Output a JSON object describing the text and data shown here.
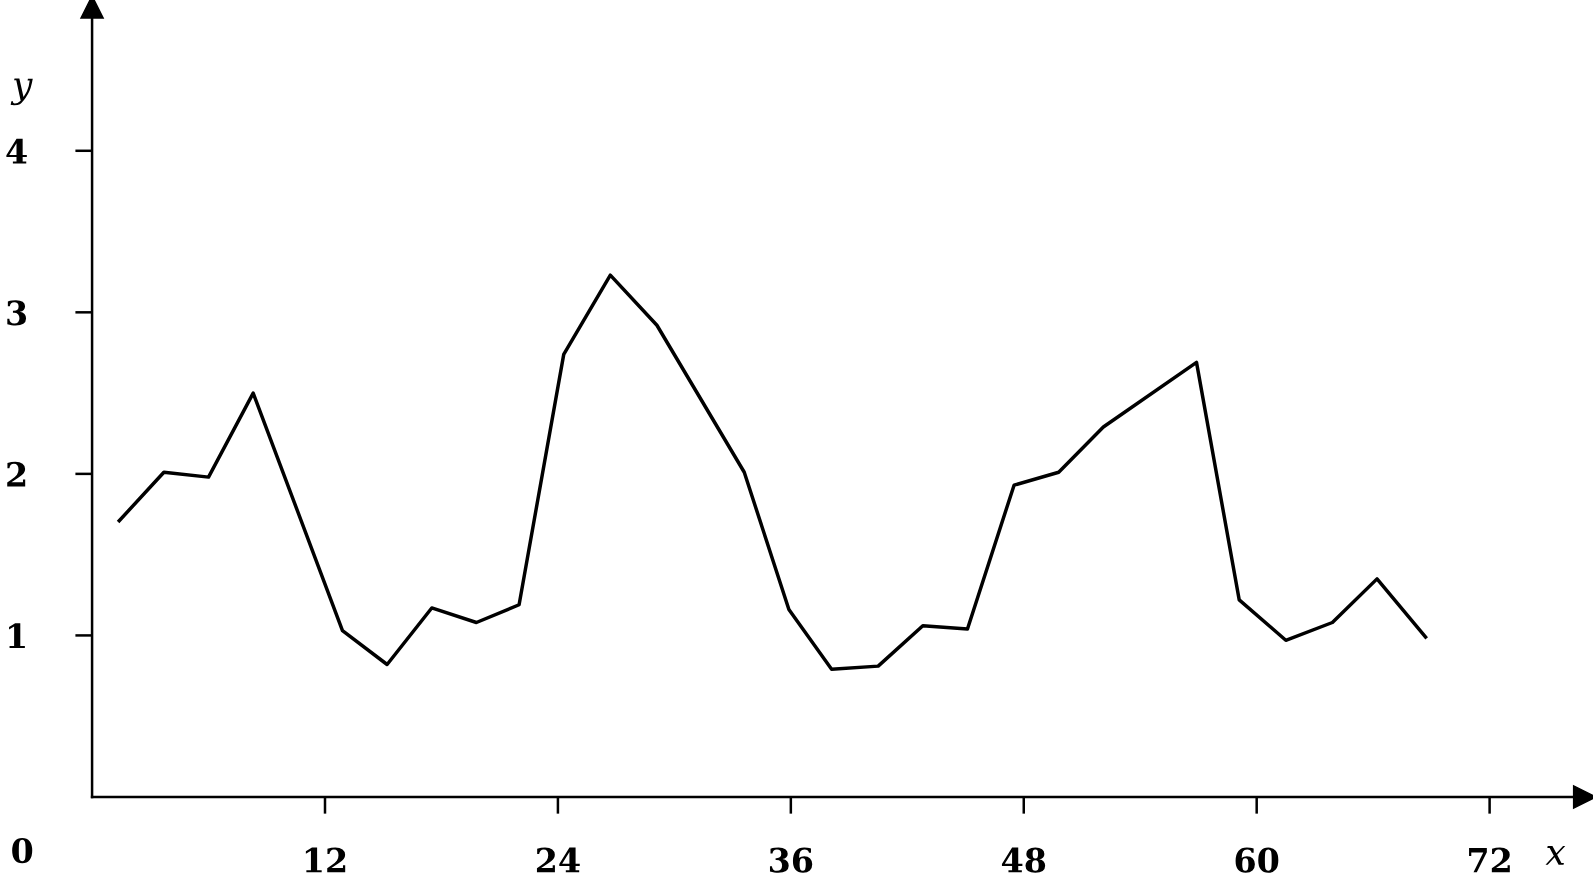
{
  "chart_data": {
    "type": "line",
    "xlabel": "x",
    "ylabel": "y",
    "x": [
      1.4,
      3.7,
      6.0,
      8.3,
      12.9,
      15.2,
      17.5,
      19.8,
      22.0,
      24.3,
      26.7,
      29.1,
      33.6,
      35.9,
      38.1,
      40.5,
      42.8,
      45.1,
      47.5,
      49.8,
      52.1,
      56.9,
      59.1,
      61.5,
      63.9,
      66.2,
      68.7
    ],
    "series": [
      {
        "color": "#000000",
        "values": [
          1.71,
          2.01,
          1.98,
          2.5,
          1.03,
          0.82,
          1.17,
          1.08,
          1.19,
          2.74,
          3.23,
          2.92,
          2.01,
          1.16,
          0.79,
          0.81,
          1.06,
          1.04,
          1.93,
          2.01,
          2.29,
          2.69,
          1.22,
          0.97,
          1.08,
          1.35,
          0.99
        ]
      }
    ],
    "xlim": [
      0,
      76.9
    ],
    "ylim": [
      0,
      4.89
    ],
    "xticks": [
      12,
      24,
      36,
      48,
      60,
      72
    ],
    "yticks": [
      1,
      2,
      3,
      4
    ],
    "annotations": [
      "0"
    ],
    "grid": false,
    "legend": false,
    "marker": "none",
    "line_style": "solid"
  }
}
